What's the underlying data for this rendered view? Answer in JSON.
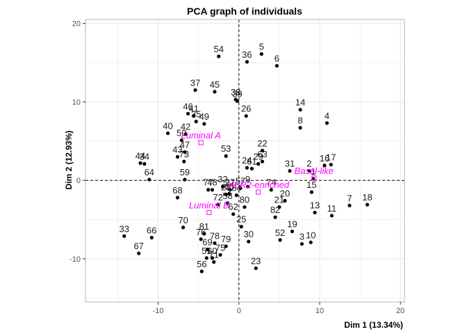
{
  "chart_data": {
    "type": "scatter",
    "title": "PCA graph of individuals",
    "xlabel": "Dim 1 (13.34%)",
    "ylabel": "Dim 2 (12.93%)",
    "xlim": [
      -19,
      20.5
    ],
    "ylim": [
      -15.5,
      20.5
    ],
    "x_ticks": [
      -10,
      0,
      10,
      20
    ],
    "x_tick_labels": [
      "-10",
      "0",
      "10",
      "20"
    ],
    "y_ticks": [
      -10,
      0,
      10,
      20
    ],
    "y_tick_labels": [
      "-10",
      "0",
      "10",
      "20"
    ],
    "grid": true,
    "reference_lines": {
      "x": 0,
      "y": 0,
      "style": "dashed"
    },
    "colors": {
      "points": "#000000",
      "supplementary": "#ff00ff",
      "grid": "#e6e6e6",
      "panel_border": "#b3b3b3",
      "text": "#1a1a1a"
    },
    "points": [
      {
        "label": "1",
        "x": 9.2,
        "y": 0.2
      },
      {
        "label": "2",
        "x": 8.7,
        "y": 1.2
      },
      {
        "label": "3",
        "x": 7.8,
        "y": -8.1
      },
      {
        "label": "4",
        "x": 10.9,
        "y": 7.3
      },
      {
        "label": "5",
        "x": 2.8,
        "y": 16.1
      },
      {
        "label": "6",
        "x": 4.7,
        "y": 14.6
      },
      {
        "label": "7",
        "x": 13.7,
        "y": -3.2
      },
      {
        "label": "8",
        "x": 7.6,
        "y": 6.7
      },
      {
        "label": "9",
        "x": 1.1,
        "y": -0.8
      },
      {
        "label": "10",
        "x": 8.9,
        "y": -7.9
      },
      {
        "label": "11",
        "x": 11.5,
        "y": -4.5
      },
      {
        "label": "13",
        "x": 9.4,
        "y": -4.1
      },
      {
        "label": "14",
        "x": 7.6,
        "y": 9.0
      },
      {
        "label": "15",
        "x": 9.0,
        "y": -1.5
      },
      {
        "label": "16",
        "x": 10.6,
        "y": 1.9
      },
      {
        "label": "17",
        "x": 11.4,
        "y": 2.0
      },
      {
        "label": "18",
        "x": 15.9,
        "y": -3.1
      },
      {
        "label": "19",
        "x": 6.6,
        "y": -6.5
      },
      {
        "label": "20",
        "x": 5.7,
        "y": -2.6
      },
      {
        "label": "21",
        "x": 5.0,
        "y": -3.4
      },
      {
        "label": "22",
        "x": 2.9,
        "y": 3.8
      },
      {
        "label": "23",
        "x": 2.1,
        "y": -11.2
      },
      {
        "label": "24",
        "x": 1.0,
        "y": 1.6
      },
      {
        "label": "25",
        "x": 0.3,
        "y": -5.9
      },
      {
        "label": "26",
        "x": 0.9,
        "y": 8.2
      },
      {
        "label": "27",
        "x": -1.1,
        "y": -1.2
      },
      {
        "label": "28",
        "x": -1.6,
        "y": -1.8
      },
      {
        "label": "29",
        "x": 2.4,
        "y": 2.1
      },
      {
        "label": "30",
        "x": 1.2,
        "y": -7.8
      },
      {
        "label": "31",
        "x": 6.3,
        "y": 1.2
      },
      {
        "label": "32",
        "x": -2.0,
        "y": -0.8
      },
      {
        "label": "33",
        "x": -14.2,
        "y": -7.1
      },
      {
        "label": "34",
        "x": -11.7,
        "y": 2.1
      },
      {
        "label": "35",
        "x": -5.3,
        "y": 7.5
      },
      {
        "label": "36",
        "x": 1.0,
        "y": 15.1
      },
      {
        "label": "37",
        "x": -5.4,
        "y": 11.5
      },
      {
        "label": "38",
        "x": -0.4,
        "y": 10.3
      },
      {
        "label": "39",
        "x": -0.2,
        "y": 10.1
      },
      {
        "label": "40",
        "x": -8.8,
        "y": 6.0
      },
      {
        "label": "41",
        "x": -5.6,
        "y": 8.2
      },
      {
        "label": "42",
        "x": -6.6,
        "y": 5.9
      },
      {
        "label": "43",
        "x": -7.6,
        "y": 3.0
      },
      {
        "label": "44",
        "x": -12.2,
        "y": 2.2
      },
      {
        "label": "45",
        "x": -3.0,
        "y": 11.3
      },
      {
        "label": "46",
        "x": -6.3,
        "y": 8.5
      },
      {
        "label": "47",
        "x": -6.7,
        "y": 3.6
      },
      {
        "label": "48",
        "x": -3.3,
        "y": -1.2
      },
      {
        "label": "49",
        "x": -4.3,
        "y": 7.2
      },
      {
        "label": "50",
        "x": -7.1,
        "y": 5.1
      },
      {
        "label": "51",
        "x": -4.0,
        "y": -9.9
      },
      {
        "label": "52",
        "x": 5.1,
        "y": -7.6
      },
      {
        "label": "53",
        "x": -1.6,
        "y": 3.1
      },
      {
        "label": "54",
        "x": -2.5,
        "y": 15.8
      },
      {
        "label": "56",
        "x": -4.6,
        "y": -11.6
      },
      {
        "label": "57",
        "x": 0.2,
        "y": -1.0
      },
      {
        "label": "58",
        "x": -1.4,
        "y": -2.9
      },
      {
        "label": "59",
        "x": -6.7,
        "y": 0.1
      },
      {
        "label": "60",
        "x": -3.3,
        "y": -9.9
      },
      {
        "label": "61",
        "x": 1.6,
        "y": 1.5
      },
      {
        "label": "62",
        "x": -0.7,
        "y": -4.3
      },
      {
        "label": "63",
        "x": 2.9,
        "y": 2.4
      },
      {
        "label": "64",
        "x": -11.1,
        "y": 0.1
      },
      {
        "label": "65",
        "x": -1.2,
        "y": -1.7
      },
      {
        "label": "66",
        "x": -10.8,
        "y": -7.3
      },
      {
        "label": "67",
        "x": -12.4,
        "y": -9.3
      },
      {
        "label": "68",
        "x": -7.6,
        "y": -2.2
      },
      {
        "label": "69",
        "x": -3.9,
        "y": -8.8
      },
      {
        "label": "70",
        "x": -6.9,
        "y": -6.0
      },
      {
        "label": "71",
        "x": -3.1,
        "y": -10.4
      },
      {
        "label": "72",
        "x": -2.6,
        "y": -3.1
      },
      {
        "label": "73",
        "x": -6.8,
        "y": 2.4
      },
      {
        "label": "74",
        "x": 4.0,
        "y": -1.2
      },
      {
        "label": "75",
        "x": -2.3,
        "y": -9.5
      },
      {
        "label": "76",
        "x": -4.7,
        "y": -7.5
      },
      {
        "label": "77",
        "x": -3.8,
        "y": -1.2
      },
      {
        "label": "78",
        "x": -3.0,
        "y": -8.0
      },
      {
        "label": "79",
        "x": -1.6,
        "y": -8.4
      },
      {
        "label": "80",
        "x": 0.7,
        "y": -3.4
      },
      {
        "label": "81",
        "x": -4.3,
        "y": -6.8
      },
      {
        "label": "82",
        "x": 4.5,
        "y": -4.7
      },
      {
        "label": "84",
        "x": -0.3,
        "y": -1.9
      }
    ],
    "supplementary_points": [
      {
        "label": "Luminal A",
        "x": -4.7,
        "y": 4.8
      },
      {
        "label": "Luminal B",
        "x": -3.7,
        "y": -4.1
      },
      {
        "label": "HER2-enriched",
        "x": 2.4,
        "y": -1.5
      },
      {
        "label": "Basal-like",
        "x": 9.3,
        "y": 0.3
      }
    ]
  }
}
